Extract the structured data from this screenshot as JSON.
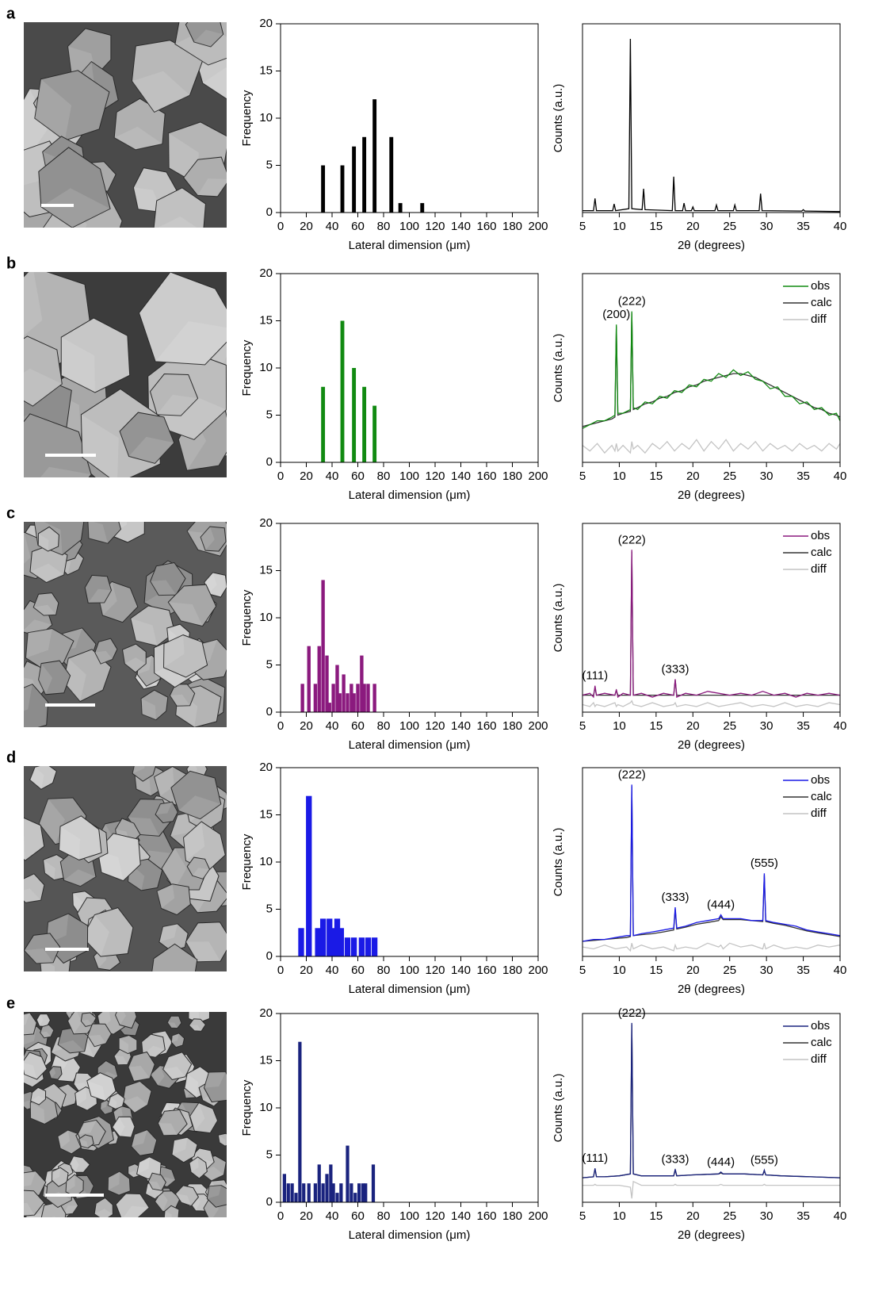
{
  "panel_labels": [
    "a",
    "b",
    "c",
    "d",
    "e"
  ],
  "chart_data": [
    {
      "type": "bar",
      "xlabel": "Lateral dimension (μm)",
      "ylabel": "Frequency",
      "color": "#000000",
      "bar_width": 3,
      "x": [
        33,
        48,
        57,
        65,
        73,
        86,
        93,
        110
      ],
      "values": [
        5,
        5,
        7,
        8,
        12,
        8,
        1,
        1
      ],
      "xlim": [
        0,
        200
      ],
      "xticks": [
        0,
        20,
        40,
        60,
        80,
        100,
        120,
        140,
        160,
        180,
        200
      ],
      "ylim": [
        0,
        20
      ],
      "yticks": [
        0,
        5,
        10,
        15,
        20
      ]
    },
    {
      "type": "line",
      "xlabel": "2θ (degrees)",
      "ylabel": "Counts (a.u.)",
      "x": [
        5,
        6.5,
        6.7,
        6.9,
        9.1,
        9.3,
        9.5,
        11.3,
        11.5,
        11.7,
        13.1,
        13.3,
        13.5,
        17.2,
        17.4,
        17.6,
        18.6,
        18.8,
        19,
        19.8,
        20,
        20.2,
        23,
        23.2,
        23.4,
        25.5,
        25.7,
        25.9,
        29,
        29.2,
        29.4,
        34.8,
        35,
        35.2,
        40
      ],
      "series": [
        {
          "color": "#000000",
          "values": [
            1,
            1,
            7.5,
            1,
            1,
            4.6,
            1,
            2,
            92,
            2,
            1.5,
            12.6,
            1.5,
            1,
            19,
            1,
            1,
            5,
            1,
            1,
            3,
            1,
            1,
            4,
            1,
            1,
            4,
            1,
            1,
            10,
            1,
            0.8,
            1.5,
            0.8,
            0.5
          ]
        }
      ],
      "xlim": [
        5,
        40
      ],
      "xticks": [
        5,
        10,
        15,
        20,
        25,
        30,
        35,
        40
      ],
      "ylim": [
        0,
        100
      ],
      "annotations": []
    },
    {
      "type": "bar",
      "xlabel": "Lateral dimension (μm)",
      "ylabel": "Frequency",
      "color": "#118a11",
      "bar_width": 3,
      "x": [
        33,
        48,
        57,
        65,
        73
      ],
      "values": [
        8,
        15,
        10,
        8,
        6
      ],
      "xlim": [
        0,
        200
      ],
      "xticks": [
        0,
        20,
        40,
        60,
        80,
        100,
        120,
        140,
        160,
        180,
        200
      ],
      "ylim": [
        0,
        20
      ],
      "yticks": [
        0,
        5,
        10,
        15,
        20
      ]
    },
    {
      "type": "line",
      "xlabel": "2θ (degrees)",
      "ylabel": "Counts (a.u.)",
      "legend": "upper right",
      "x": [
        5,
        6,
        7,
        8,
        9,
        9.4,
        9.6,
        9.8,
        10.5,
        11.5,
        11.7,
        11.9,
        12.5,
        13.5,
        14.5,
        15.5,
        16.5,
        17.5,
        18.5,
        19.5,
        20.5,
        21.5,
        22.5,
        23.5,
        24.5,
        25.5,
        26.5,
        27.5,
        28.5,
        29.5,
        30.5,
        31.5,
        32.5,
        33.5,
        34.5,
        35.5,
        36.5,
        37.5,
        38.5,
        39.5,
        40
      ],
      "series": [
        {
          "name": "obs",
          "color": "#118a11",
          "values": [
            18,
            20,
            22,
            22,
            24,
            25,
            73,
            26,
            26,
            28,
            80,
            29,
            28,
            32,
            31,
            35,
            34,
            38,
            37,
            41,
            40,
            44,
            43,
            47,
            45,
            49,
            46,
            48,
            44,
            43,
            39,
            40,
            35,
            35,
            31,
            32,
            28,
            29,
            25,
            26,
            22
          ]
        },
        {
          "name": "calc",
          "color": "#333333",
          "values": [
            19,
            20,
            21,
            22,
            23,
            24,
            72,
            25,
            26,
            27,
            79,
            28,
            29,
            31,
            32,
            34,
            35,
            37,
            38,
            40,
            41,
            43,
            44,
            45,
            46,
            47,
            47,
            46,
            45,
            43,
            41,
            39,
            37,
            35,
            33,
            31,
            29,
            28,
            26,
            25,
            24
          ]
        },
        {
          "name": "diff",
          "color": "#c4c4c4",
          "values": [
            9,
            6,
            10,
            5,
            9,
            6,
            10,
            6,
            9,
            5,
            11,
            7,
            9,
            5,
            10,
            7,
            11,
            6,
            10,
            7,
            12,
            6,
            11,
            7,
            12,
            6,
            10,
            7,
            11,
            6,
            10,
            7,
            9,
            6,
            10,
            7,
            9,
            6,
            10,
            7,
            10
          ]
        }
      ],
      "xlim": [
        5,
        40
      ],
      "xticks": [
        5,
        10,
        15,
        20,
        25,
        30,
        35,
        40
      ],
      "ylim": [
        0,
        100
      ],
      "annotations": [
        {
          "text": "(200)",
          "x": 9.6
        },
        {
          "text": "(222)",
          "x": 11.7
        }
      ]
    },
    {
      "type": "bar",
      "xlabel": "Lateral dimension (μm)",
      "ylabel": "Frequency",
      "color": "#8b1a7e",
      "bar_width": 2.7,
      "x": [
        17,
        22,
        27,
        30,
        33,
        36,
        38,
        41,
        44,
        46,
        49,
        52,
        55,
        57,
        60,
        63,
        65,
        68,
        73
      ],
      "values": [
        3,
        7,
        3,
        7,
        14,
        6,
        1,
        3,
        5,
        2,
        4,
        2,
        3,
        2,
        3,
        6,
        3,
        3,
        3
      ],
      "xlim": [
        0,
        200
      ],
      "xticks": [
        0,
        20,
        40,
        60,
        80,
        100,
        120,
        140,
        160,
        180,
        200
      ],
      "ylim": [
        0,
        20
      ],
      "yticks": [
        0,
        5,
        10,
        15,
        20
      ]
    },
    {
      "type": "line",
      "xlabel": "2θ (degrees)",
      "ylabel": "Counts (a.u.)",
      "legend": "upper right",
      "x": [
        5,
        6,
        6.5,
        6.7,
        6.9,
        8,
        9.4,
        9.6,
        9.8,
        10.5,
        11.5,
        11.7,
        11.9,
        13,
        14.5,
        16,
        17.4,
        17.6,
        17.8,
        19,
        20.5,
        22,
        23.5,
        25,
        26.5,
        28,
        29.5,
        31,
        32.5,
        34,
        35.5,
        37,
        38.5,
        40
      ],
      "series": [
        {
          "name": "obs",
          "color": "#8b1a7e",
          "values": [
            9,
            10,
            8,
            14,
            9,
            10,
            9,
            12,
            8,
            10,
            9,
            86,
            9,
            10,
            8,
            10,
            9,
            17.5,
            8,
            10,
            9,
            11,
            10,
            9,
            10,
            9,
            11,
            9,
            10,
            8,
            10,
            9,
            10,
            9
          ]
        },
        {
          "name": "calc",
          "color": "#333333",
          "values": [
            9,
            9,
            9,
            13,
            9,
            9,
            9,
            11.5,
            9,
            9,
            9,
            85,
            9,
            9,
            9,
            9,
            9,
            17,
            9,
            9,
            9,
            9,
            9,
            9,
            9,
            9,
            9,
            9,
            9,
            9,
            9,
            9,
            9,
            9
          ]
        },
        {
          "name": "diff",
          "color": "#c4c4c4",
          "values": [
            4,
            3,
            5,
            3,
            4,
            3,
            5,
            3,
            4,
            3,
            5,
            6,
            4,
            3,
            5,
            3,
            4,
            5,
            3,
            4,
            3,
            5,
            3,
            4,
            5,
            3,
            4,
            3,
            5,
            3,
            4,
            3,
            5,
            4
          ]
        }
      ],
      "xlim": [
        5,
        40
      ],
      "xticks": [
        5,
        10,
        15,
        20,
        25,
        30,
        35,
        40
      ],
      "ylim": [
        0,
        100
      ],
      "annotations": [
        {
          "text": "(111)",
          "x": 6.7
        },
        {
          "text": "(222)",
          "x": 11.7
        },
        {
          "text": "(333)",
          "x": 17.6
        }
      ]
    },
    {
      "type": "bar",
      "xlabel": "Lateral dimension (μm)",
      "ylabel": "Frequency",
      "color": "#1a1ae6",
      "bar_width": 4.5,
      "x": [
        16,
        22,
        29,
        33,
        38,
        41,
        44,
        47,
        52,
        57,
        63,
        68,
        73
      ],
      "values": [
        3,
        17,
        3,
        4,
        4,
        3,
        4,
        3,
        2,
        2,
        2,
        2,
        2
      ],
      "xlim": [
        0,
        200
      ],
      "xticks": [
        0,
        20,
        40,
        60,
        80,
        100,
        120,
        140,
        160,
        180,
        200
      ],
      "ylim": [
        0,
        20
      ],
      "yticks": [
        0,
        5,
        10,
        15,
        20
      ]
    },
    {
      "type": "line",
      "xlabel": "2θ (degrees)",
      "ylabel": "Counts (a.u.)",
      "legend": "upper right",
      "x": [
        5,
        6.5,
        8,
        9.5,
        11,
        11.5,
        11.7,
        11.9,
        13,
        14.5,
        16,
        17.4,
        17.6,
        17.8,
        19,
        20.5,
        22,
        23.5,
        23.8,
        24.1,
        25,
        26.5,
        28,
        29.5,
        29.7,
        29.9,
        31,
        32.5,
        34,
        35.5,
        37,
        38.5,
        40
      ],
      "series": [
        {
          "name": "obs",
          "color": "#1a1ae6",
          "values": [
            8,
            9,
            9,
            10,
            11,
            11,
            91,
            11,
            12,
            13,
            14,
            15,
            26,
            15,
            16,
            18,
            19,
            20,
            22,
            20,
            20,
            20,
            19,
            19,
            44,
            19,
            18,
            17,
            16,
            14,
            13,
            12,
            11
          ]
        },
        {
          "name": "calc",
          "color": "#333333",
          "values": [
            8,
            8.5,
            9,
            9.5,
            10,
            10.5,
            90,
            11,
            11.5,
            12,
            13,
            14,
            25,
            14.5,
            15.5,
            17,
            18,
            19,
            21,
            19.5,
            19.5,
            19.5,
            19,
            18.5,
            43,
            18.5,
            17.5,
            16.5,
            15,
            13.5,
            12.5,
            11.5,
            10.5
          ]
        },
        {
          "name": "diff",
          "color": "#c4c4c4",
          "values": [
            5,
            4,
            6,
            4,
            5,
            3,
            7,
            4,
            6,
            4,
            5,
            3,
            6,
            4,
            5,
            4,
            7,
            5,
            6,
            4,
            7,
            5,
            6,
            4,
            7,
            4,
            6,
            4,
            5,
            4,
            6,
            5,
            6
          ]
        }
      ],
      "xlim": [
        5,
        40
      ],
      "xticks": [
        5,
        10,
        15,
        20,
        25,
        30,
        35,
        40
      ],
      "ylim": [
        0,
        100
      ],
      "annotations": [
        {
          "text": "(222)",
          "x": 11.7
        },
        {
          "text": "(333)",
          "x": 17.6
        },
        {
          "text": "(444)",
          "x": 23.8
        },
        {
          "text": "(555)",
          "x": 29.7
        }
      ]
    },
    {
      "type": "bar",
      "xlabel": "Lateral dimension (μm)",
      "ylabel": "Frequency",
      "color": "#1a237e",
      "bar_width": 2.6,
      "x": [
        3,
        6,
        9,
        12,
        15,
        18,
        22,
        27,
        30,
        33,
        36,
        39,
        41,
        44,
        47,
        52,
        55,
        58,
        61,
        64,
        66,
        72
      ],
      "values": [
        3,
        2,
        2,
        1,
        17,
        2,
        2,
        2,
        4,
        2,
        3,
        4,
        2,
        1,
        2,
        6,
        2,
        1,
        2,
        2,
        2,
        4
      ],
      "xlim": [
        0,
        200
      ],
      "xticks": [
        0,
        20,
        40,
        60,
        80,
        100,
        120,
        140,
        160,
        180,
        200
      ],
      "ylim": [
        0,
        20
      ],
      "yticks": [
        0,
        5,
        10,
        15,
        20
      ]
    },
    {
      "type": "line",
      "xlabel": "2θ (degrees)",
      "ylabel": "Counts (a.u.)",
      "legend": "upper right",
      "x": [
        5,
        6.5,
        6.7,
        6.9,
        8,
        10,
        11.5,
        11.7,
        11.9,
        13,
        15,
        17.4,
        17.6,
        17.8,
        20,
        23.5,
        23.8,
        24.1,
        27,
        29.5,
        29.7,
        29.9,
        32,
        36,
        40
      ],
      "series": [
        {
          "name": "obs",
          "color": "#1a237e",
          "values": [
            13,
            13.5,
            18,
            13.5,
            13.5,
            14,
            15,
            95,
            15,
            14,
            14,
            14,
            17.5,
            14,
            14.5,
            15,
            16,
            15,
            15,
            14.5,
            17,
            14.5,
            14,
            13.5,
            13
          ]
        },
        {
          "name": "calc",
          "color": "#333333",
          "values": [
            13,
            13.5,
            17.5,
            13.5,
            13.5,
            14,
            15,
            94,
            15,
            14,
            14,
            14,
            17,
            14,
            14.5,
            15,
            15.5,
            15,
            15,
            14.5,
            16.5,
            14.5,
            14,
            13.5,
            13
          ]
        },
        {
          "name": "diff",
          "color": "#c4c4c4",
          "values": [
            9,
            9,
            9.5,
            9,
            9,
            9,
            8,
            2,
            11,
            9,
            9,
            9,
            9.5,
            9,
            9,
            9,
            9.5,
            9,
            9,
            9,
            9.5,
            9,
            9,
            9,
            9
          ]
        }
      ],
      "xlim": [
        5,
        40
      ],
      "xticks": [
        5,
        10,
        15,
        20,
        25,
        30,
        35,
        40
      ],
      "ylim": [
        0,
        100
      ],
      "annotations": [
        {
          "text": "(111)",
          "x": 6.7
        },
        {
          "text": "(222)",
          "x": 11.7
        },
        {
          "text": "(333)",
          "x": 17.6
        },
        {
          "text": "(444)",
          "x": 23.8
        },
        {
          "text": "(555)",
          "x": 29.7
        }
      ]
    }
  ]
}
